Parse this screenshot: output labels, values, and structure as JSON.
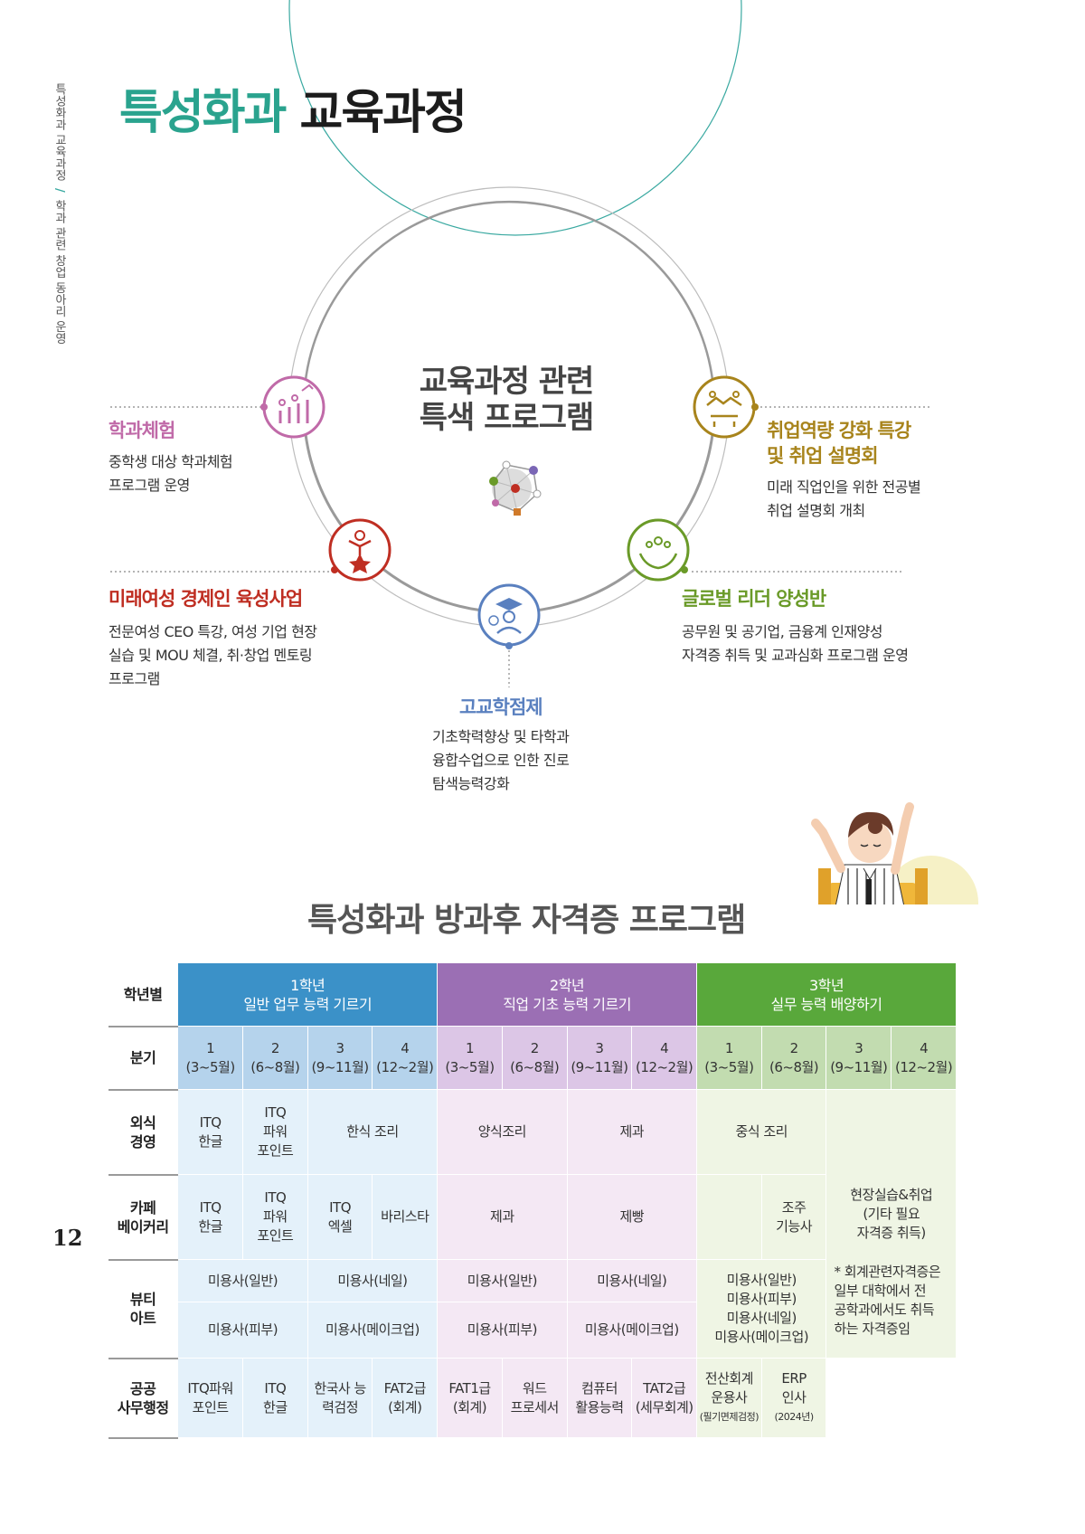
{
  "side_label": {
    "part1": "특성화과 교육과정",
    "slash": "/",
    "part2": "학과 관련 창업 동아리 운영"
  },
  "page_number": "12",
  "title": {
    "teal": "특성화과",
    "dark": "교육과정"
  },
  "diagram": {
    "center_title": "교육과정 관련\n특색 프로그램",
    "nodes": [
      {
        "id": "dept",
        "title": "학과체험",
        "desc": "중학생 대상 학과체험\n프로그램 운영",
        "color": "#c06aa8",
        "icon": "people-growth-icon"
      },
      {
        "id": "job",
        "title": "취업역량 강화 특강\n및 취업 설명회",
        "desc": "미래 직업인을 위한 전공별\n취업 설명회 개최",
        "color": "#a8841c",
        "icon": "handshake-icon"
      },
      {
        "id": "women",
        "title": "미래여성 경제인 육성사업",
        "desc": "전문여성 CEO 특강, 여성 기업 현장\n실습 및 MOU 체결, 취·창업 멘토링\n프로그램",
        "color": "#bf2e22",
        "icon": "star-person-icon"
      },
      {
        "id": "global",
        "title": "글로벌 리더 양성반",
        "desc": "공무원 및 공기업, 금융계 인재양성\n자격증 취득 및 교과심화 프로그램 운영",
        "color": "#6a9a28",
        "icon": "hands-people-icon"
      },
      {
        "id": "credit",
        "title": "고교학점제",
        "desc": "기초학력향상 및 타학과\n융합수업으로 인한 진로\n탐색능력강화",
        "color": "#5a80bf",
        "icon": "graduate-icon"
      }
    ]
  },
  "table": {
    "title": "특성화과 방과후 자격증 프로그램",
    "row_headers": {
      "grade": "학년별",
      "quarter": "분기",
      "food": "외식\n경영",
      "cafe": "카페\n베이커리",
      "beauty": "뷰티\n아트",
      "public": "공공\n사무행정"
    },
    "grades": [
      {
        "label": "1학년\n일반 업무 능력 기르기",
        "color": "#3b91c8"
      },
      {
        "label": "2학년\n직업 기초 능력 기르기",
        "color": "#9b6fb4"
      },
      {
        "label": "3학년\n실무 능력 배양하기",
        "color": "#59a83b"
      }
    ],
    "quarters": [
      "1\n(3~5월)",
      "2\n(6~8월)",
      "3\n(9~11월)",
      "4\n(12~2월)"
    ],
    "food": {
      "g1": [
        "ITQ\n한글",
        "ITQ\n파워\n포인트",
        "한식 조리"
      ],
      "g2": [
        "양식조리",
        "제과"
      ],
      "g3": [
        "중식 조리"
      ]
    },
    "cafe": {
      "g1": [
        "ITQ\n한글",
        "ITQ\n파워\n포인트",
        "ITQ\n엑셀",
        "바리스타"
      ],
      "g2": [
        "제과",
        "제빵"
      ],
      "g3": [
        "",
        "조주\n기능사"
      ]
    },
    "g3_side": "현장실습&취업\n(기타 필요\n자격증 취득)",
    "g3_note": "* 회계관련자격증은\n일부 대학에서 전\n공학과에서도 취득\n하는 자격증임",
    "beauty": {
      "g1_top": [
        "미용사(일반)",
        "미용사(네일)"
      ],
      "g1_bottom": [
        "미용사(피부)",
        "미용사(메이크업)"
      ],
      "g2_top": [
        "미용사(일반)",
        "미용사(네일)"
      ],
      "g2_bottom": [
        "미용사(피부)",
        "미용사(메이크업)"
      ],
      "g3": "미용사(일반)\n미용사(피부)\n미용사(네일)\n미용사(메이크업)"
    },
    "public": {
      "g1": [
        "ITQ파워\n포인트",
        "ITQ\n한글",
        "한국사 능\n력검정",
        "FAT2급\n(회계)"
      ],
      "g2": [
        "FAT1급\n(회계)",
        "워드\n프로세서",
        "컴퓨터\n활용능력",
        "TAT2급\n(세무회계)"
      ],
      "g3": [
        {
          "main": "전산회계\n운용사",
          "sub": "(필기면제검정)"
        },
        {
          "main": "ERP\n인사",
          "sub": "(2024년)"
        }
      ]
    }
  }
}
